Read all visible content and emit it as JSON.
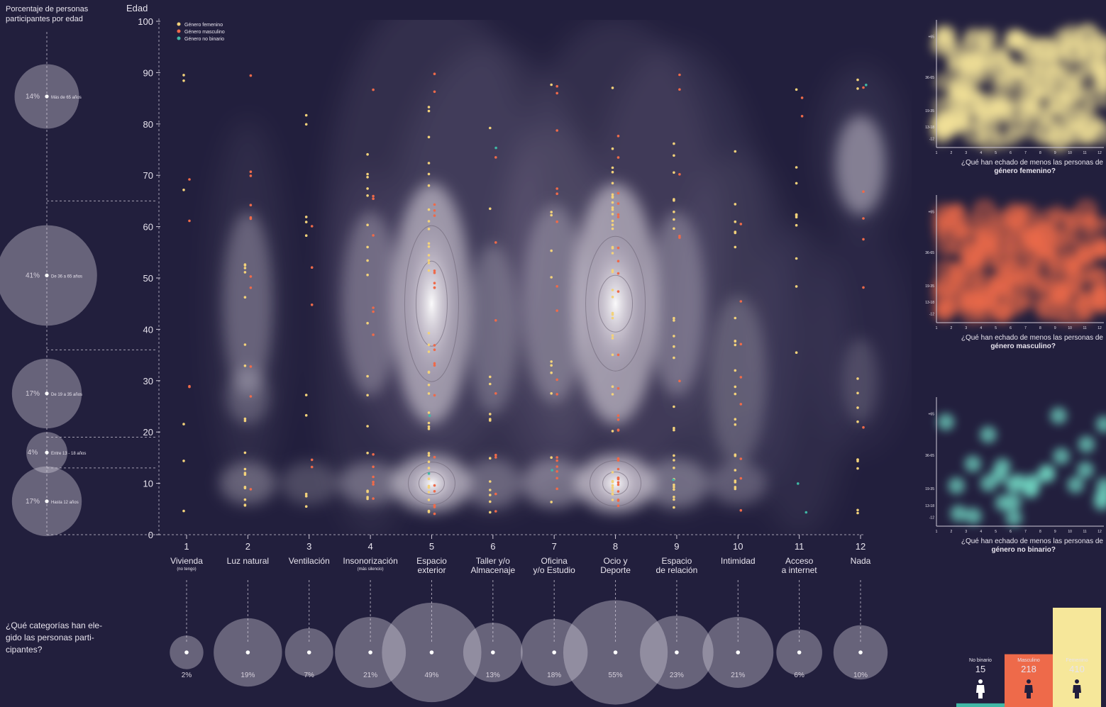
{
  "left_panel": {
    "title_line1": "Porcentaje de personas",
    "title_line2": "participantes por edad",
    "groups": [
      {
        "pct": "14%",
        "label": "Más de 65 años",
        "value": 14,
        "age_from": 65,
        "age_to": 100
      },
      {
        "pct": "41%",
        "label": "De 36 a 65 años",
        "value": 41,
        "age_from": 36,
        "age_to": 65
      },
      {
        "pct": "17%",
        "label": "De 19 a 35 años",
        "value": 17,
        "age_from": 19,
        "age_to": 36
      },
      {
        "pct": "4%",
        "label": "Entre 13 - 18 años",
        "value": 4,
        "age_from": 13,
        "age_to": 19
      },
      {
        "pct": "17%",
        "label": "Hasta 12 años",
        "value": 17,
        "age_from": 0,
        "age_to": 13
      }
    ]
  },
  "bottom_question": {
    "line1": "¿Qué categorías han ele-",
    "line2": "gido las personas parti-",
    "line3": "cipantes?"
  },
  "chart_data": {
    "type": "scatter",
    "ylabel": "Edad",
    "ylim": [
      0,
      100
    ],
    "yticks": [
      "0",
      "10",
      "20",
      "30",
      "40",
      "50",
      "60",
      "70",
      "80",
      "90",
      "100"
    ],
    "legend": [
      {
        "name": "Género femenino",
        "color": "#f3d27a"
      },
      {
        "name": "Género masculino",
        "color": "#ee6a4a"
      },
      {
        "name": "Género no binario",
        "color": "#3fb8a5"
      }
    ],
    "categories": [
      {
        "num": "1",
        "line1": "Vivienda",
        "line2": "",
        "sub": "(no tengo)",
        "pct": "2%",
        "value": 2
      },
      {
        "num": "2",
        "line1": "Luz natural",
        "line2": "",
        "sub": "",
        "pct": "19%",
        "value": 19
      },
      {
        "num": "3",
        "line1": "Ventilación",
        "line2": "",
        "sub": "",
        "pct": "7%",
        "value": 7
      },
      {
        "num": "4",
        "line1": "Insonorización",
        "line2": "",
        "sub": "(más silencio)",
        "pct": "21%",
        "value": 21
      },
      {
        "num": "5",
        "line1": "Espacio",
        "line2": "exterior",
        "sub": "",
        "pct": "49%",
        "value": 49
      },
      {
        "num": "6",
        "line1": "Taller y/o",
        "line2": "Almacenaje",
        "sub": "",
        "pct": "13%",
        "value": 13
      },
      {
        "num": "7",
        "line1": "Oficina",
        "line2": "y/o Estudio",
        "sub": "",
        "pct": "18%",
        "value": 18
      },
      {
        "num": "8",
        "line1": "Ocio y",
        "line2": "Deporte",
        "sub": "",
        "pct": "55%",
        "value": 55
      },
      {
        "num": "9",
        "line1": "Espacio",
        "line2": "de relación",
        "sub": "",
        "pct": "23%",
        "value": 23
      },
      {
        "num": "10",
        "line1": "Intimidad",
        "line2": "",
        "sub": "",
        "pct": "21%",
        "value": 21
      },
      {
        "num": "11",
        "line1": "Acceso",
        "line2": "a internet",
        "sub": "",
        "pct": "6%",
        "value": 6
      },
      {
        "num": "12",
        "line1": "Nada",
        "line2": "",
        "sub": "",
        "pct": "10%",
        "value": 10
      }
    ]
  },
  "side_panels": [
    {
      "caption_line1": "¿Qué han echado de menos las personas de",
      "caption_line2": "género femenino?",
      "color": "#f3e39a"
    },
    {
      "caption_line1": "¿Qué han echado de menos las personas de",
      "caption_line2": "género masculino?",
      "color": "#ee6a4a"
    },
    {
      "caption_line1": "¿Qué han echado de menos las personas de",
      "caption_line2": "género no binario?",
      "color": "#6fd3c0"
    }
  ],
  "side_axis": {
    "yticks": [
      "+65",
      "36-65",
      "19-35",
      "13-18",
      "-12"
    ],
    "xticks": [
      "1",
      "2",
      "3",
      "4",
      "5",
      "6",
      "7",
      "8",
      "9",
      "10",
      "11",
      "12"
    ]
  },
  "gender_totals": [
    {
      "label": "No binario",
      "count": "15",
      "value": 15,
      "color": "#3fb8a5"
    },
    {
      "label": "Masculino",
      "count": "218",
      "value": 218,
      "color": "#ee6a4a"
    },
    {
      "label": "Femenino",
      "count": "410",
      "value": 410,
      "color": "#f6e79a"
    }
  ]
}
